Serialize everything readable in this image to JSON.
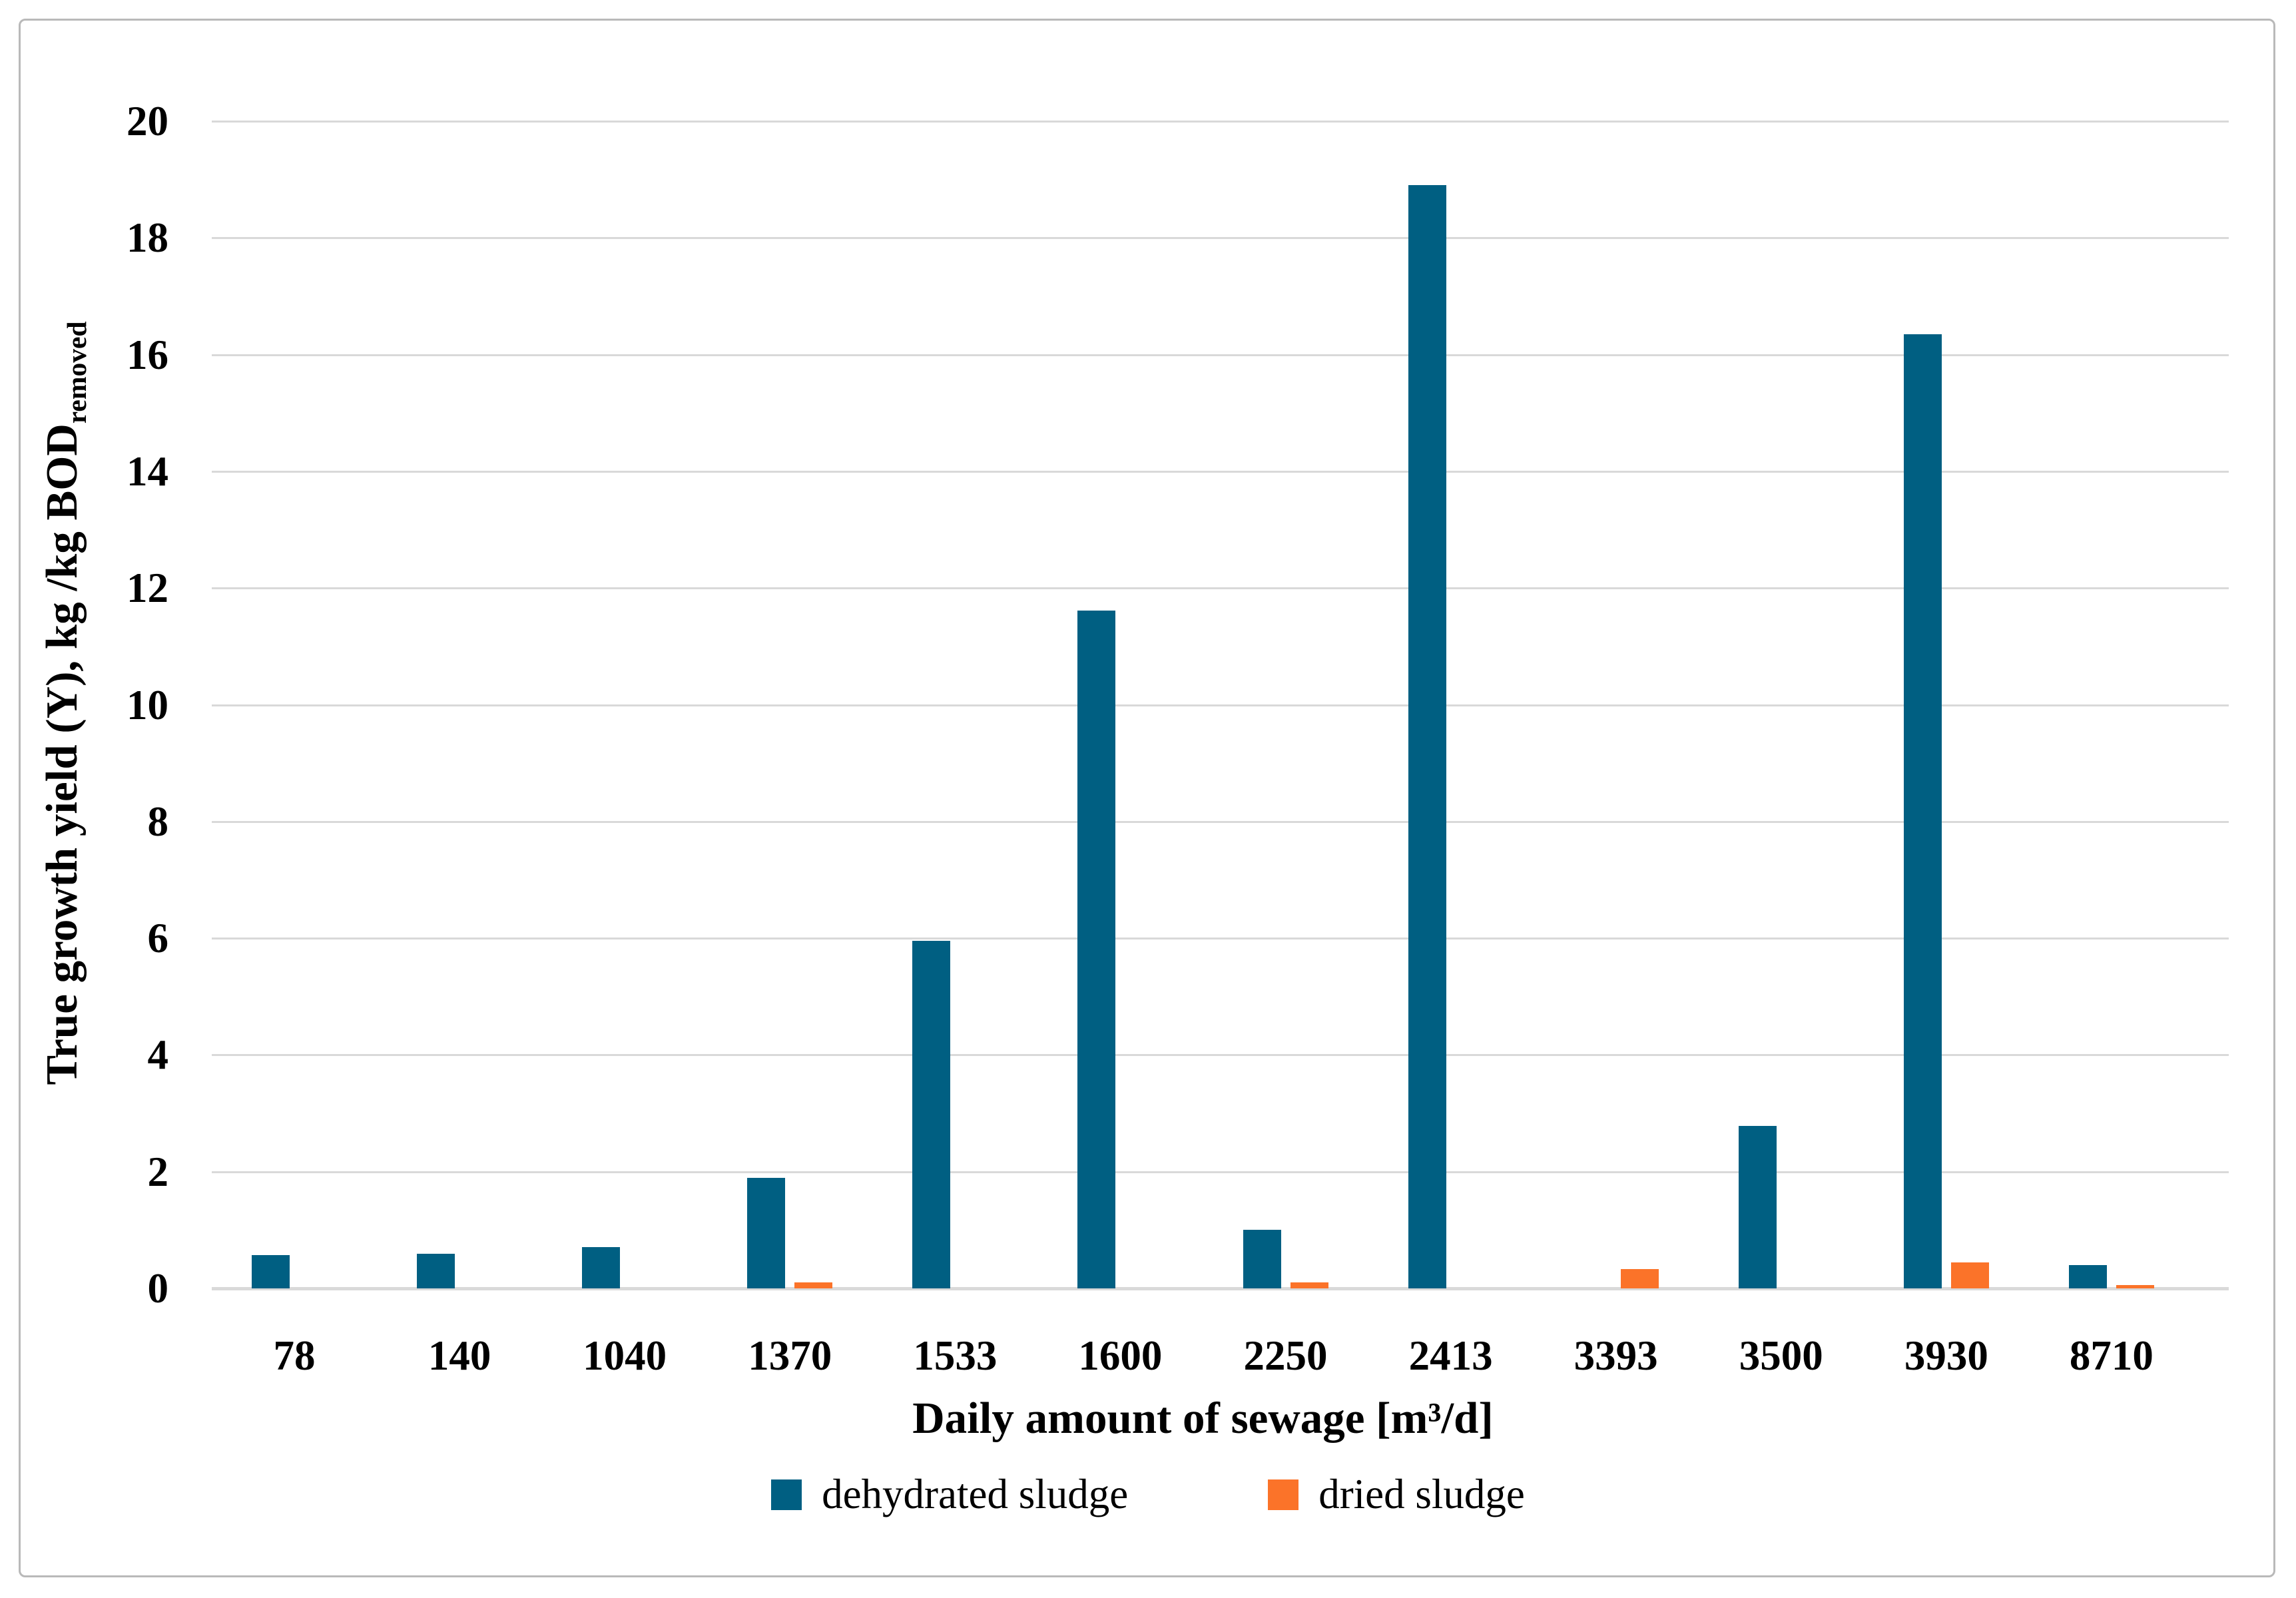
{
  "chart_data": {
    "type": "bar",
    "title": "",
    "xlabel": "Daily amount of sewage [m³/d]",
    "ylabel": "True growth yield (Y), kg /kg BOD",
    "ylabel_subscript": "removed",
    "categories": [
      "78",
      "140",
      "1040",
      "1370",
      "1533",
      "1600",
      "2250",
      "2413",
      "3393",
      "3500",
      "3930",
      "8710"
    ],
    "series": [
      {
        "name": "dehydrated sludge",
        "color": "#005F82",
        "values": [
          0.57,
          0.59,
          0.71,
          1.89,
          5.95,
          11.62,
          1.0,
          18.9,
          0,
          2.78,
          16.35,
          0.4
        ]
      },
      {
        "name": "dried sludge",
        "color": "#FB7329",
        "values": [
          0,
          0,
          0,
          0.1,
          0,
          0,
          0.1,
          0,
          0.33,
          0,
          0.45,
          0.06
        ]
      }
    ],
    "ylim": [
      0,
      20
    ],
    "yticks": [
      0,
      2,
      4,
      6,
      8,
      10,
      12,
      14,
      16,
      18,
      20
    ],
    "grid": "horizontal",
    "gridline_color": "#d9d9d9",
    "legend_position": "bottom"
  }
}
